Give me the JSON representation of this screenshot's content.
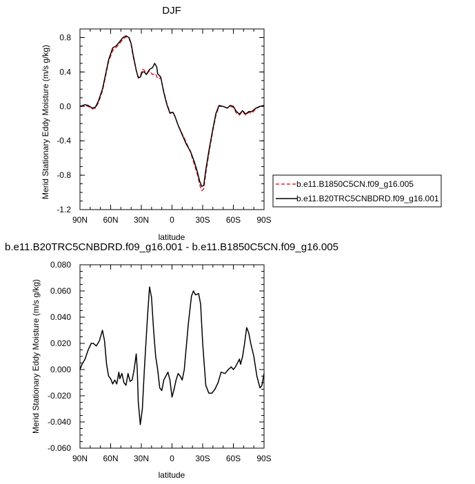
{
  "chart_data": [
    {
      "type": "line",
      "title": "DJF",
      "xlabel": "latitude",
      "ylabel": "Merid Stationary Eddy Moisture (m/s g/kg)",
      "x_ticks": [
        {
          "value": 90,
          "label": "90N"
        },
        {
          "value": 60,
          "label": "60N"
        },
        {
          "value": 30,
          "label": "30N"
        },
        {
          "value": 0,
          "label": "0"
        },
        {
          "value": -30,
          "label": "30S"
        },
        {
          "value": -60,
          "label": "60S"
        },
        {
          "value": -90,
          "label": "90S"
        }
      ],
      "xlim": [
        90,
        -90
      ],
      "ylim": [
        -1.2,
        0.9
      ],
      "y_ticks": [
        {
          "value": 0.8,
          "label": "0.8"
        },
        {
          "value": 0.4,
          "label": "0.4"
        },
        {
          "value": 0.0,
          "label": "0.0"
        },
        {
          "value": -0.4,
          "label": "-0.4"
        },
        {
          "value": -0.8,
          "label": "-0.8"
        },
        {
          "value": -1.2,
          "label": "-1.2"
        }
      ],
      "legend_position": "right",
      "series": [
        {
          "name": "b.e11.B1850C5CN.f09_g16.005",
          "color": "#e8202a",
          "dash": "dashed",
          "points": [
            [
              90,
              0.0
            ],
            [
              85,
              0.01
            ],
            [
              82,
              0.0
            ],
            [
              78,
              -0.03
            ],
            [
              75,
              -0.02
            ],
            [
              72,
              0.04
            ],
            [
              68,
              0.18
            ],
            [
              65,
              0.35
            ],
            [
              62,
              0.52
            ],
            [
              58,
              0.65
            ],
            [
              55,
              0.68
            ],
            [
              52,
              0.72
            ],
            [
              48,
              0.78
            ],
            [
              45,
              0.81
            ],
            [
              42,
              0.79
            ],
            [
              40,
              0.72
            ],
            [
              38,
              0.58
            ],
            [
              35,
              0.42
            ],
            [
              33,
              0.34
            ],
            [
              31,
              0.35
            ],
            [
              29,
              0.43
            ],
            [
              27,
              0.42
            ],
            [
              25,
              0.38
            ],
            [
              22,
              0.41
            ],
            [
              19,
              0.37
            ],
            [
              16,
              0.38
            ],
            [
              14,
              0.32
            ],
            [
              11,
              0.33
            ],
            [
              8,
              0.17
            ],
            [
              5,
              0.03
            ],
            [
              2,
              -0.07
            ],
            [
              -1,
              -0.07
            ],
            [
              -3,
              -0.12
            ],
            [
              -6,
              -0.22
            ],
            [
              -10,
              -0.32
            ],
            [
              -14,
              -0.42
            ],
            [
              -18,
              -0.53
            ],
            [
              -22,
              -0.68
            ],
            [
              -25,
              -0.8
            ],
            [
              -27,
              -0.91
            ],
            [
              -29,
              -0.98
            ],
            [
              -31,
              -0.96
            ],
            [
              -33,
              -0.78
            ],
            [
              -36,
              -0.55
            ],
            [
              -40,
              -0.28
            ],
            [
              -43,
              -0.1
            ],
            [
              -46,
              0.0
            ],
            [
              -50,
              0.0
            ],
            [
              -54,
              -0.02
            ],
            [
              -57,
              0.0
            ],
            [
              -60,
              -0.01
            ],
            [
              -63,
              -0.08
            ],
            [
              -66,
              -0.1
            ],
            [
              -69,
              -0.06
            ],
            [
              -72,
              -0.1
            ],
            [
              -75,
              -0.07
            ],
            [
              -78,
              -0.08
            ],
            [
              -82,
              -0.03
            ],
            [
              -86,
              0.0
            ],
            [
              -90,
              0.01
            ]
          ]
        },
        {
          "name": "b.e11.B20TRC5CNBDRD.f09_g16.001",
          "color": "#000000",
          "dash": "solid",
          "points": [
            [
              90,
              0.0
            ],
            [
              85,
              0.02
            ],
            [
              82,
              0.01
            ],
            [
              78,
              -0.02
            ],
            [
              75,
              -0.01
            ],
            [
              72,
              0.06
            ],
            [
              68,
              0.2
            ],
            [
              65,
              0.37
            ],
            [
              62,
              0.54
            ],
            [
              58,
              0.68
            ],
            [
              55,
              0.7
            ],
            [
              52,
              0.74
            ],
            [
              48,
              0.8
            ],
            [
              45,
              0.82
            ],
            [
              42,
              0.8
            ],
            [
              40,
              0.73
            ],
            [
              38,
              0.6
            ],
            [
              35,
              0.42
            ],
            [
              33,
              0.33
            ],
            [
              31,
              0.34
            ],
            [
              29,
              0.4
            ],
            [
              27,
              0.4
            ],
            [
              25,
              0.37
            ],
            [
              22,
              0.43
            ],
            [
              19,
              0.45
            ],
            [
              17,
              0.5
            ],
            [
              15,
              0.46
            ],
            [
              14,
              0.38
            ],
            [
              11,
              0.34
            ],
            [
              8,
              0.16
            ],
            [
              5,
              0.02
            ],
            [
              2,
              -0.08
            ],
            [
              -1,
              -0.07
            ],
            [
              -3,
              -0.12
            ],
            [
              -6,
              -0.22
            ],
            [
              -10,
              -0.33
            ],
            [
              -14,
              -0.44
            ],
            [
              -18,
              -0.52
            ],
            [
              -22,
              -0.65
            ],
            [
              -25,
              -0.77
            ],
            [
              -27,
              -0.87
            ],
            [
              -29,
              -0.93
            ],
            [
              -31,
              -0.92
            ],
            [
              -33,
              -0.74
            ],
            [
              -36,
              -0.52
            ],
            [
              -40,
              -0.26
            ],
            [
              -43,
              -0.08
            ],
            [
              -46,
              0.01
            ],
            [
              -50,
              0.0
            ],
            [
              -54,
              -0.02
            ],
            [
              -57,
              0.01
            ],
            [
              -60,
              0.0
            ],
            [
              -63,
              -0.06
            ],
            [
              -66,
              -0.09
            ],
            [
              -69,
              -0.05
            ],
            [
              -72,
              -0.09
            ],
            [
              -75,
              -0.06
            ],
            [
              -78,
              -0.06
            ],
            [
              -82,
              -0.02
            ],
            [
              -86,
              0.0
            ],
            [
              -90,
              0.01
            ]
          ]
        }
      ]
    },
    {
      "type": "line",
      "title": "b.e11.B20TRC5CNBDRD.f09_g16.001 - b.e11.B1850C5CN.f09_g16.005",
      "xlabel": "latitude",
      "ylabel": "Merid Stationary Eddy Moisture (m/s g/kg)",
      "x_ticks": [
        {
          "value": 90,
          "label": "90N"
        },
        {
          "value": 60,
          "label": "60N"
        },
        {
          "value": 30,
          "label": "30N"
        },
        {
          "value": 0,
          "label": "0"
        },
        {
          "value": -30,
          "label": "30S"
        },
        {
          "value": -60,
          "label": "60S"
        },
        {
          "value": -90,
          "label": "90S"
        }
      ],
      "xlim": [
        90,
        -90
      ],
      "ylim": [
        -0.06,
        0.08
      ],
      "y_ticks": [
        {
          "value": 0.08,
          "label": "0.080"
        },
        {
          "value": 0.06,
          "label": "0.060"
        },
        {
          "value": 0.04,
          "label": "0.040"
        },
        {
          "value": 0.02,
          "label": "0.020"
        },
        {
          "value": 0.0,
          "label": "0.000"
        },
        {
          "value": -0.02,
          "label": "-0.020"
        },
        {
          "value": -0.04,
          "label": "-0.040"
        },
        {
          "value": -0.06,
          "label": "-0.060"
        }
      ],
      "series": [
        {
          "color": "#000000",
          "dash": "solid",
          "points": [
            [
              90,
              0.0
            ],
            [
              88,
              0.004
            ],
            [
              85,
              0.008
            ],
            [
              82,
              0.015
            ],
            [
              79,
              0.02
            ],
            [
              77,
              0.02
            ],
            [
              74,
              0.018
            ],
            [
              71,
              0.022
            ],
            [
              68,
              0.03
            ],
            [
              66,
              0.022
            ],
            [
              64,
              0.004
            ],
            [
              62,
              -0.005
            ],
            [
              60,
              -0.007
            ],
            [
              58,
              -0.011
            ],
            [
              56,
              -0.008
            ],
            [
              54,
              -0.011
            ],
            [
              52,
              -0.002
            ],
            [
              51,
              -0.007
            ],
            [
              49,
              -0.003
            ],
            [
              47,
              -0.01
            ],
            [
              45,
              -0.012
            ],
            [
              43,
              -0.003
            ],
            [
              41,
              -0.009
            ],
            [
              39,
              -0.008
            ],
            [
              37,
              0.0
            ],
            [
              35,
              0.012
            ],
            [
              34,
              0.0
            ],
            [
              33,
              -0.025
            ],
            [
              31,
              -0.042
            ],
            [
              29,
              -0.03
            ],
            [
              27,
              0.0
            ],
            [
              24,
              0.04
            ],
            [
              22,
              0.063
            ],
            [
              20,
              0.055
            ],
            [
              18,
              0.03
            ],
            [
              16,
              0.01
            ],
            [
              14,
              0.0
            ],
            [
              12,
              -0.014
            ],
            [
              10,
              -0.016
            ],
            [
              8,
              -0.008
            ],
            [
              6,
              -0.005
            ],
            [
              4,
              -0.002
            ],
            [
              2,
              -0.008
            ],
            [
              0,
              -0.021
            ],
            [
              -2,
              -0.015
            ],
            [
              -4,
              -0.008
            ],
            [
              -6,
              -0.003
            ],
            [
              -8,
              -0.005
            ],
            [
              -10,
              -0.008
            ],
            [
              -12,
              0.0
            ],
            [
              -16,
              0.035
            ],
            [
              -19,
              0.056
            ],
            [
              -21,
              0.06
            ],
            [
              -23,
              0.057
            ],
            [
              -26,
              0.058
            ],
            [
              -28,
              0.05
            ],
            [
              -30,
              0.02
            ],
            [
              -33,
              -0.012
            ],
            [
              -36,
              -0.018
            ],
            [
              -39,
              -0.018
            ],
            [
              -42,
              -0.015
            ],
            [
              -45,
              -0.01
            ],
            [
              -48,
              -0.002
            ],
            [
              -52,
              -0.003
            ],
            [
              -55,
              0.0
            ],
            [
              -58,
              0.002
            ],
            [
              -60,
              0.0
            ],
            [
              -62,
              0.002
            ],
            [
              -64,
              0.005
            ],
            [
              -66,
              0.008
            ],
            [
              -67,
              0.004
            ],
            [
              -69,
              0.01
            ],
            [
              -71,
              0.02
            ],
            [
              -73,
              0.032
            ],
            [
              -75,
              0.028
            ],
            [
              -77,
              0.02
            ],
            [
              -80,
              0.01
            ],
            [
              -83,
              -0.005
            ],
            [
              -86,
              -0.014
            ],
            [
              -88,
              -0.012
            ],
            [
              -90,
              -0.003
            ]
          ]
        }
      ]
    }
  ]
}
